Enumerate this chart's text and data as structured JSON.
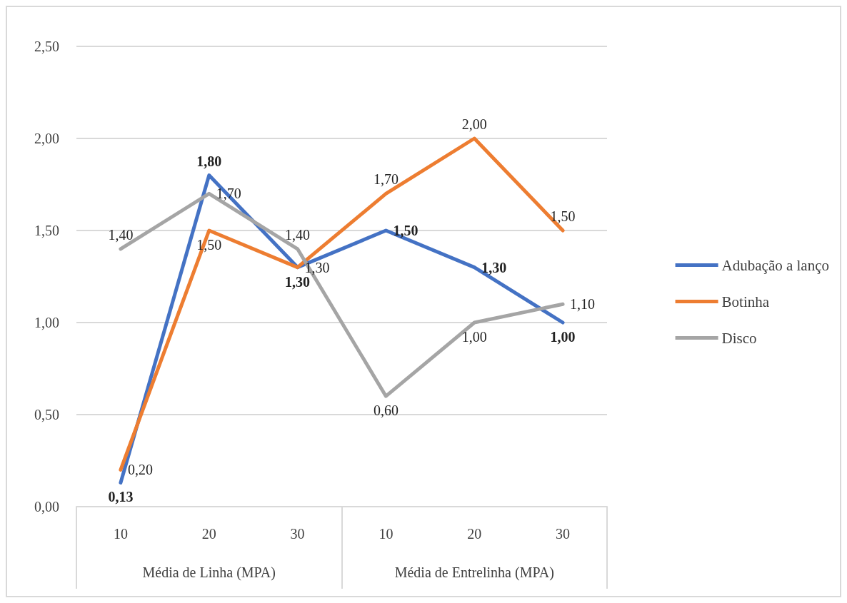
{
  "chart_data": {
    "type": "line",
    "categories": [
      "10",
      "20",
      "30",
      "10",
      "20",
      "30"
    ],
    "annotations": [
      "Média de Linha (MPA)",
      "Média de Entrelinha (MPA)"
    ],
    "series": [
      {
        "name": "Adubação a lanço",
        "color": "#4472c4",
        "values": [
          0.13,
          1.8,
          1.3,
          1.5,
          1.3,
          1.0
        ],
        "value_labels": [
          "0,13",
          "1,80",
          "1,30",
          "1,50",
          "1,30",
          "1,00"
        ]
      },
      {
        "name": "Botinha",
        "color": "#ed7d31",
        "values": [
          0.2,
          1.5,
          1.3,
          1.7,
          2.0,
          1.5
        ],
        "value_labels": [
          "0,20",
          "1,50",
          "1,30",
          "1,70",
          "2,00",
          "1,50"
        ]
      },
      {
        "name": "Disco",
        "color": "#a5a5a5",
        "values": [
          1.4,
          1.7,
          1.4,
          0.6,
          1.0,
          1.1
        ],
        "value_labels": [
          "1,40",
          "1,70",
          "1,40",
          "0,60",
          "1,00",
          "1,10"
        ]
      }
    ],
    "ylim": [
      0,
      2.5
    ],
    "yticks": [
      {
        "value": 0,
        "label": "0,00"
      },
      {
        "value": 0.5,
        "label": "0,50"
      },
      {
        "value": 1,
        "label": "1,00"
      },
      {
        "value": 1.5,
        "label": "1,50"
      },
      {
        "value": 2,
        "label": "2,00"
      },
      {
        "value": 2.5,
        "label": "2,50"
      }
    ],
    "grid": "y",
    "legend": "right",
    "marker": "none",
    "line_style": "solid"
  }
}
